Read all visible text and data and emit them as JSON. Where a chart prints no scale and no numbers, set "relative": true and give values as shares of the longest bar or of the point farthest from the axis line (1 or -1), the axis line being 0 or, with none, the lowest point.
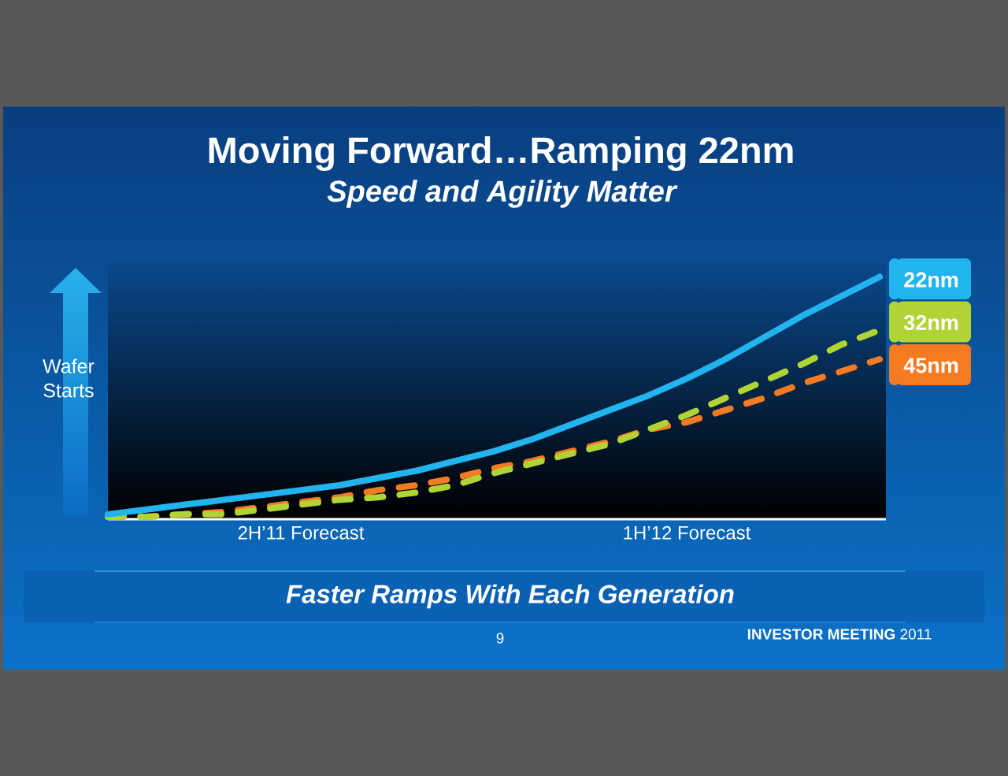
{
  "chart_data": {
    "type": "line",
    "title": "Moving Forward…Ramping 22nm",
    "subtitle": "Speed and Agility Matter",
    "ylabel": "Wafer Starts",
    "categories": [
      null,
      null,
      null,
      null,
      null,
      "2H’11 Forecast",
      null,
      null,
      null,
      null,
      null,
      null,
      null,
      null,
      null,
      "1H’12 Forecast",
      null,
      null,
      null,
      null,
      null
    ],
    "relative": true,
    "tick_labels": "x",
    "legend": "top right",
    "series": [
      {
        "name": "22nm",
        "color": "#22b4ee",
        "line_style": "solid",
        "values": [
          0.02,
          0.04,
          0.06,
          0.08,
          0.1,
          0.12,
          0.14,
          0.17,
          0.2,
          0.24,
          0.28,
          0.33,
          0.39,
          0.45,
          0.51,
          0.58,
          0.66,
          0.75,
          0.84,
          0.92,
          1
        ]
      },
      {
        "name": "32nm",
        "color": "#b0d435",
        "line_style": "dashed",
        "values": [
          0.01,
          0.01,
          0.02,
          0.02,
          0.04,
          0.06,
          0.08,
          0.09,
          0.11,
          0.14,
          0.19,
          0.23,
          0.27,
          0.31,
          0.37,
          0.43,
          0.5,
          0.57,
          0.64,
          0.72,
          0.78
        ]
      },
      {
        "name": "45nm",
        "color": "#f47b22",
        "line_style": "dashed",
        "values": [
          0.01,
          0.01,
          0.02,
          0.03,
          0.05,
          0.07,
          0.09,
          0.12,
          0.14,
          0.17,
          0.21,
          0.24,
          0.28,
          0.32,
          0.37,
          0.4,
          0.45,
          0.5,
          0.56,
          0.61,
          0.66
        ]
      }
    ],
    "annotations": [
      "Faster Ramps With Each Generation",
      "9",
      "**INVESTOR MEETING** 2011"
    ]
  }
}
